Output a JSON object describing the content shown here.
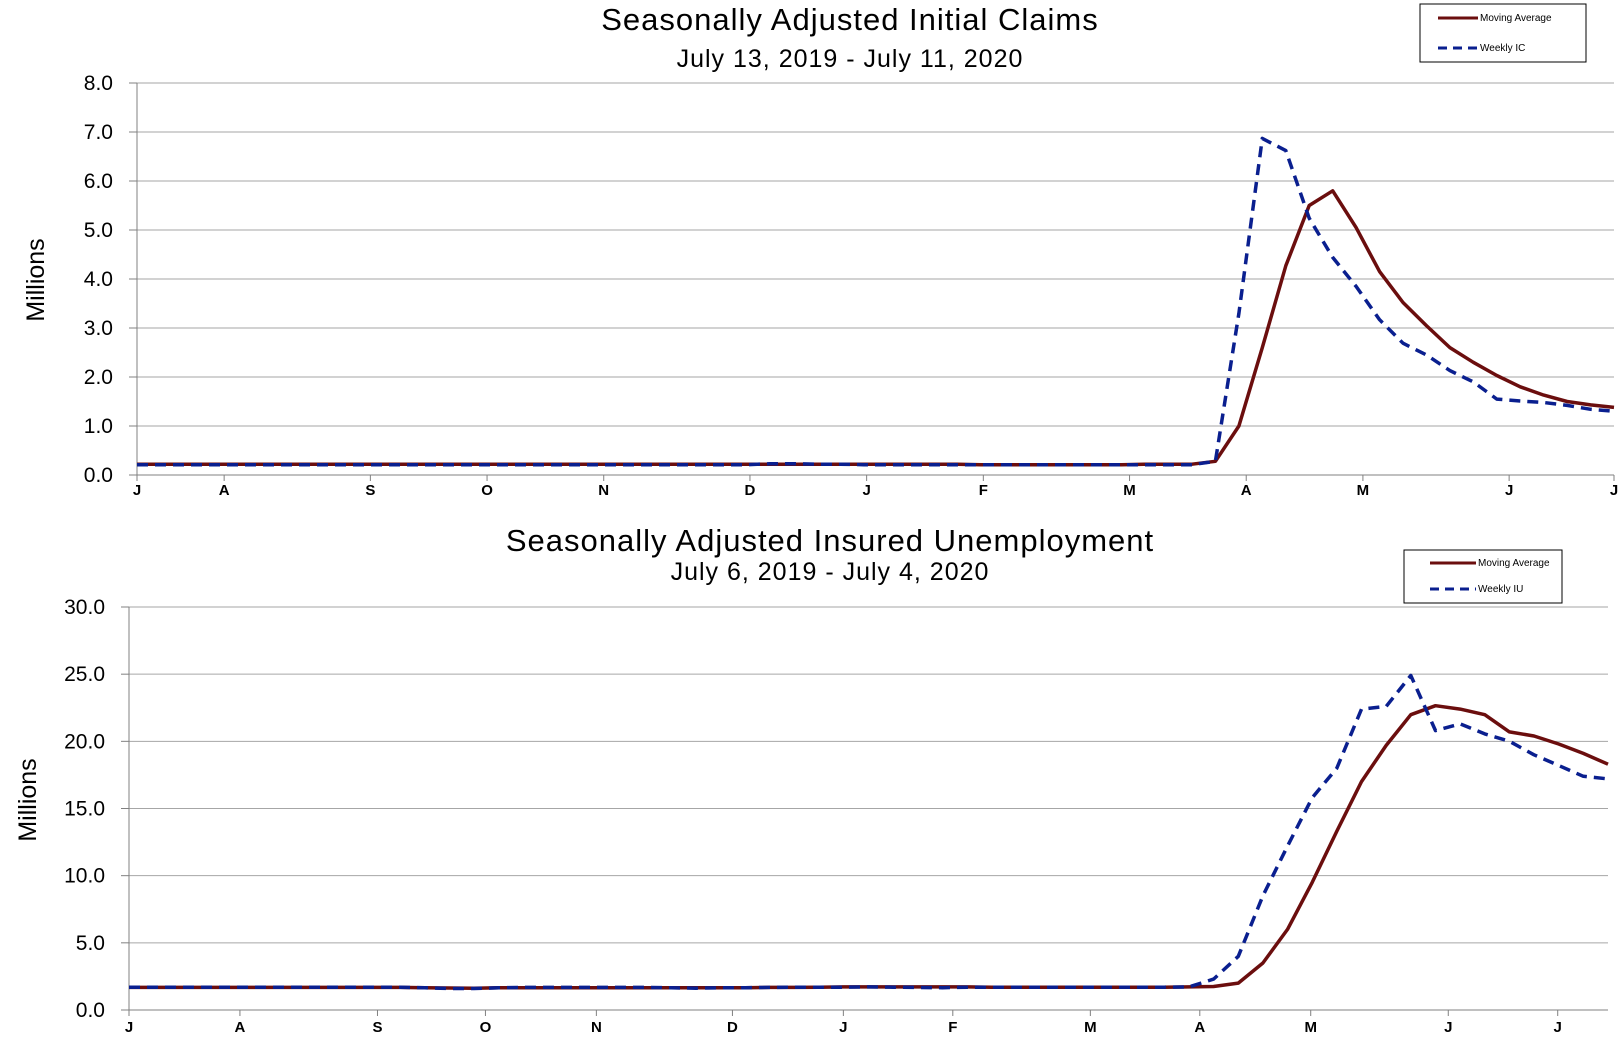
{
  "colors": {
    "moving_average": "#6b0e0e",
    "weekly": "#0a1f8f",
    "grid": "#a6a6a6",
    "axis": "#808080"
  },
  "chart_data": [
    {
      "type": "line",
      "title": "Seasonally Adjusted Initial Claims",
      "subtitle": "July 13, 2019 - July 11, 2020",
      "ylabel": "Millions",
      "ylim": [
        0,
        8
      ],
      "yticks": [
        "0.0",
        "1.0",
        "2.0",
        "3.0",
        "4.0",
        "5.0",
        "6.0",
        "7.0",
        "8.0"
      ],
      "grid": true,
      "legend_position": "top-right",
      "x_month_ticks": [
        "J",
        "A",
        "S",
        "O",
        "N",
        "D",
        "J",
        "F",
        "M",
        "A",
        "M",
        "J",
        "J"
      ],
      "series": [
        {
          "name": "Moving Average",
          "style": "solid",
          "values": [
            0.22,
            0.22,
            0.22,
            0.22,
            0.22,
            0.22,
            0.22,
            0.22,
            0.22,
            0.22,
            0.22,
            0.22,
            0.22,
            0.22,
            0.22,
            0.22,
            0.22,
            0.22,
            0.22,
            0.22,
            0.22,
            0.22,
            0.22,
            0.22,
            0.22,
            0.22,
            0.22,
            0.22,
            0.22,
            0.22,
            0.22,
            0.22,
            0.22,
            0.22,
            0.22,
            0.22,
            0.21,
            0.21,
            0.21,
            0.21,
            0.21,
            0.21,
            0.21,
            0.22,
            0.22,
            0.22,
            0.28,
            1.0,
            2.6,
            4.27,
            5.5,
            5.8,
            5.05,
            4.15,
            3.52,
            3.05,
            2.6,
            2.3,
            2.03,
            1.8,
            1.63,
            1.5,
            1.43,
            1.38
          ]
        },
        {
          "name": "Weekly IC",
          "style": "dashed",
          "values": [
            0.21,
            0.21,
            0.21,
            0.21,
            0.21,
            0.21,
            0.21,
            0.21,
            0.21,
            0.21,
            0.21,
            0.21,
            0.21,
            0.21,
            0.21,
            0.21,
            0.21,
            0.21,
            0.21,
            0.21,
            0.21,
            0.21,
            0.21,
            0.21,
            0.21,
            0.21,
            0.21,
            0.23,
            0.23,
            0.22,
            0.22,
            0.21,
            0.21,
            0.21,
            0.21,
            0.21,
            0.21,
            0.21,
            0.21,
            0.21,
            0.21,
            0.21,
            0.21,
            0.21,
            0.21,
            0.21,
            0.28,
            3.3,
            6.87,
            6.62,
            5.24,
            4.44,
            3.85,
            3.17,
            2.69,
            2.45,
            2.13,
            1.9,
            1.55,
            1.51,
            1.48,
            1.42,
            1.34,
            1.3
          ]
        }
      ]
    },
    {
      "type": "line",
      "title": "Seasonally Adjusted Insured Unemployment",
      "subtitle": "July 6, 2019 - July 4, 2020",
      "ylabel": "Millions",
      "ylim": [
        0,
        30
      ],
      "yticks": [
        "0.0",
        "5.0",
        "10.0",
        "15.0",
        "20.0",
        "25.0",
        "30.0"
      ],
      "grid": true,
      "legend_position": "top-right",
      "x_month_ticks": [
        "J",
        "A",
        "S",
        "O",
        "N",
        "D",
        "J",
        "F",
        "M",
        "A",
        "M",
        "J",
        "J"
      ],
      "series": [
        {
          "name": "Moving Average",
          "style": "solid",
          "values": [
            1.68,
            1.68,
            1.68,
            1.68,
            1.68,
            1.68,
            1.68,
            1.68,
            1.68,
            1.68,
            1.68,
            1.68,
            1.66,
            1.64,
            1.62,
            1.65,
            1.66,
            1.66,
            1.66,
            1.66,
            1.66,
            1.66,
            1.66,
            1.66,
            1.66,
            1.66,
            1.68,
            1.68,
            1.7,
            1.72,
            1.72,
            1.72,
            1.72,
            1.72,
            1.72,
            1.7,
            1.7,
            1.7,
            1.7,
            1.7,
            1.7,
            1.7,
            1.7,
            1.72,
            1.75,
            2.0,
            3.5,
            6.0,
            9.5,
            13.3,
            17.0,
            19.7,
            21.98,
            22.65,
            22.4,
            21.98,
            20.7,
            20.4,
            19.8,
            19.1,
            18.3
          ]
        },
        {
          "name": "Weekly IU",
          "style": "dashed",
          "values": [
            1.7,
            1.7,
            1.7,
            1.7,
            1.7,
            1.7,
            1.7,
            1.7,
            1.7,
            1.7,
            1.7,
            1.7,
            1.65,
            1.6,
            1.6,
            1.65,
            1.68,
            1.68,
            1.68,
            1.68,
            1.68,
            1.68,
            1.65,
            1.62,
            1.65,
            1.66,
            1.68,
            1.7,
            1.7,
            1.7,
            1.72,
            1.7,
            1.68,
            1.66,
            1.7,
            1.7,
            1.7,
            1.7,
            1.7,
            1.7,
            1.7,
            1.7,
            1.7,
            1.72,
            2.3,
            4.0,
            8.5,
            12.2,
            15.8,
            18.0,
            22.4,
            22.6,
            24.9,
            20.8,
            21.3,
            20.55,
            20.0,
            19.0,
            18.2,
            17.4,
            17.2
          ]
        }
      ]
    }
  ]
}
